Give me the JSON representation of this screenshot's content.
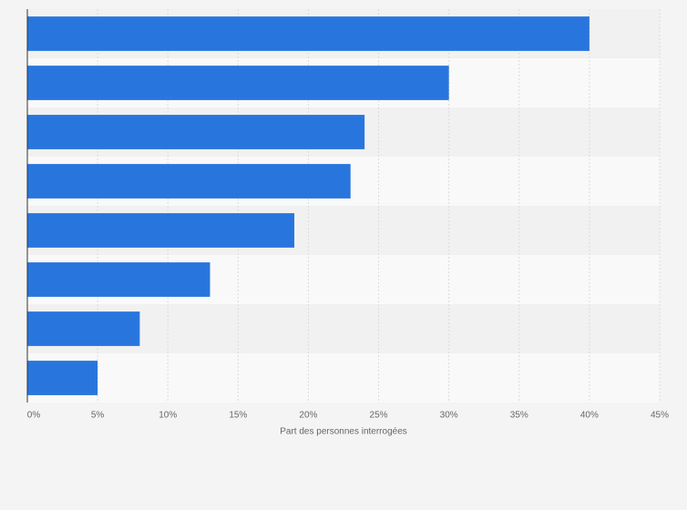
{
  "chart_data": {
    "type": "hbar",
    "categories": [
      null,
      null,
      null,
      null,
      null,
      null,
      null,
      null
    ],
    "values": [
      40,
      30,
      24,
      23,
      19,
      13,
      8,
      5
    ],
    "color": "#2876dd",
    "x_label": "Part des personnes interrogées",
    "xlim": [
      0,
      45
    ],
    "xticks": [
      {
        "value": 0,
        "label": "0%"
      },
      {
        "value": 5,
        "label": "5%"
      },
      {
        "value": 10,
        "label": "10%"
      },
      {
        "value": 15,
        "label": "15%"
      },
      {
        "value": 20,
        "label": "20%"
      },
      {
        "value": 25,
        "label": "25%"
      },
      {
        "value": 30,
        "label": "30%"
      },
      {
        "value": 35,
        "label": "35%"
      },
      {
        "value": 40,
        "label": "40%"
      },
      {
        "value": 45,
        "label": "45%"
      }
    ],
    "grid": true
  }
}
